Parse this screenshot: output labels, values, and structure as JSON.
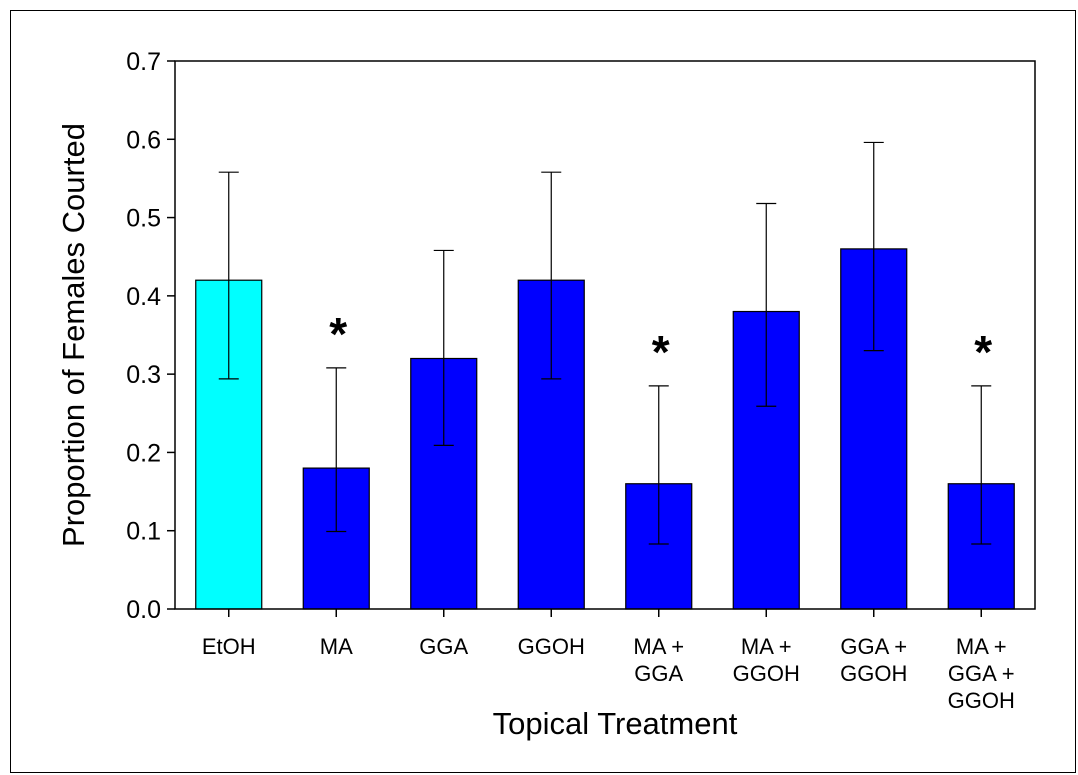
{
  "chart_data": {
    "type": "bar",
    "title": "",
    "xlabel": "Topical Treatment",
    "ylabel": "Proportion of Females Courted",
    "ylim": [
      0,
      0.7
    ],
    "yticks": [
      "0.0",
      "0.1",
      "0.2",
      "0.3",
      "0.4",
      "0.5",
      "0.6",
      "0.7"
    ],
    "grid": false,
    "categories": [
      [
        "EtOH"
      ],
      [
        "MA"
      ],
      [
        "GGA"
      ],
      [
        "GGOH"
      ],
      [
        "MA +",
        "GGA"
      ],
      [
        "MA +",
        "GGOH"
      ],
      [
        "GGA +",
        "GGOH"
      ],
      [
        "MA +",
        "GGA +",
        "GGOH"
      ]
    ],
    "values": [
      0.42,
      0.18,
      0.32,
      0.42,
      0.16,
      0.38,
      0.46,
      0.16
    ],
    "error_upper": [
      0.558,
      0.308,
      0.458,
      0.558,
      0.285,
      0.518,
      0.596,
      0.285
    ],
    "error_lower": [
      0.294,
      0.099,
      0.209,
      0.294,
      0.083,
      0.259,
      0.33,
      0.083
    ],
    "significant": [
      false,
      true,
      false,
      false,
      true,
      false,
      false,
      true
    ],
    "significance_marker": "*",
    "colors": [
      "#00ffff",
      "#0000ff",
      "#0000ff",
      "#0000ff",
      "#0000ff",
      "#0000ff",
      "#0000ff",
      "#0000ff"
    ]
  }
}
